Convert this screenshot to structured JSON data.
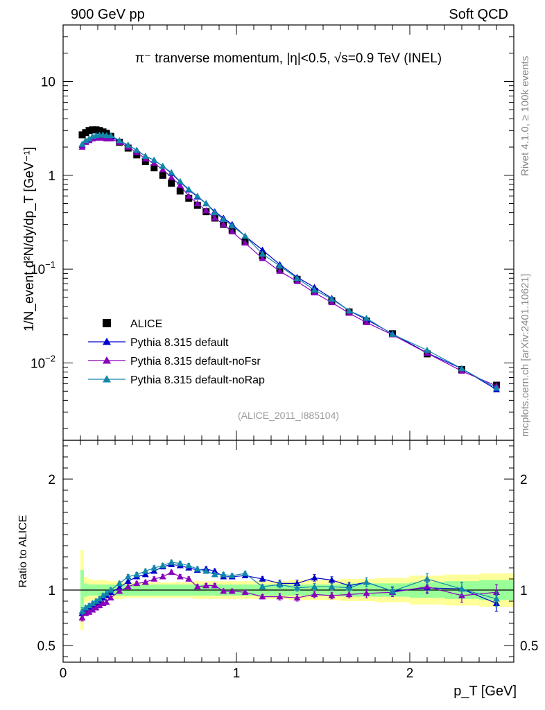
{
  "header": {
    "left": "900 GeV pp",
    "right": "Soft QCD"
  },
  "side_labels": {
    "rivet": "Rivet 4.1.0, ≥ 100k events",
    "mcplots": "mcplots.cern.ch [arXiv:2401.10621]"
  },
  "analysis_id": "(ALICE_2011_I885104)",
  "chart_data": [
    {
      "type": "scatter",
      "title": "π⁻ tranverse momentum, |η|<0.5, √s=0.9 TeV (INEL)",
      "ylabel": "1/N_event d²N/dy/dp_T [GeV⁻¹]",
      "xlabel": "",
      "yscale": "log",
      "xlim": [
        0,
        2.6
      ],
      "ylim": [
        0.0015,
        40
      ],
      "y_ticks": [
        {
          "value": 10,
          "base": "10",
          "exp": ""
        },
        {
          "value": 1,
          "base": "1",
          "exp": ""
        },
        {
          "value": 0.1,
          "base": "10",
          "exp": "−1"
        },
        {
          "value": 0.01,
          "base": "10",
          "exp": "−2"
        }
      ],
      "legend_position": "lower-left",
      "series": [
        {
          "name": "ALICE",
          "color": "#000000",
          "marker": "square",
          "x": [
            0.11,
            0.13,
            0.15,
            0.17,
            0.19,
            0.21,
            0.23,
            0.25,
            0.275,
            0.325,
            0.375,
            0.425,
            0.475,
            0.525,
            0.575,
            0.625,
            0.675,
            0.725,
            0.775,
            0.825,
            0.875,
            0.925,
            0.975,
            1.05,
            1.15,
            1.25,
            1.35,
            1.45,
            1.55,
            1.65,
            1.75,
            1.9,
            2.1,
            2.3,
            2.5
          ],
          "y": [
            2.7,
            2.85,
            3.0,
            3.05,
            3.05,
            3.0,
            2.9,
            2.8,
            2.6,
            2.25,
            1.95,
            1.65,
            1.4,
            1.2,
            1.0,
            0.82,
            0.68,
            0.57,
            0.48,
            0.41,
            0.35,
            0.3,
            0.26,
            0.195,
            0.138,
            0.1,
            0.078,
            0.058,
            0.046,
            0.035,
            0.028,
            0.0205,
            0.0125,
            0.0085,
            0.0058
          ]
        },
        {
          "name": "Pythia 8.315 default",
          "color": "#0000cc",
          "marker": "triangle",
          "x": [
            0.11,
            0.13,
            0.15,
            0.17,
            0.19,
            0.21,
            0.23,
            0.25,
            0.275,
            0.325,
            0.375,
            0.425,
            0.475,
            0.525,
            0.575,
            0.625,
            0.675,
            0.725,
            0.775,
            0.825,
            0.875,
            0.925,
            0.975,
            1.05,
            1.15,
            1.25,
            1.35,
            1.45,
            1.55,
            1.65,
            1.75,
            1.9,
            2.1,
            2.3,
            2.5
          ],
          "y": [
            2.1,
            2.3,
            2.4,
            2.55,
            2.6,
            2.65,
            2.65,
            2.6,
            2.6,
            2.3,
            2.1,
            1.85,
            1.6,
            1.45,
            1.25,
            1.05,
            0.85,
            0.7,
            0.59,
            0.5,
            0.41,
            0.35,
            0.3,
            0.225,
            0.16,
            0.112,
            0.082,
            0.064,
            0.049,
            0.036,
            0.029,
            0.0205,
            0.0128,
            0.0087,
            0.0052
          ]
        },
        {
          "name": "Pythia 8.315 default-noFsr",
          "color": "#8800bb",
          "marker": "triangle",
          "x": [
            0.11,
            0.13,
            0.15,
            0.17,
            0.19,
            0.21,
            0.23,
            0.25,
            0.275,
            0.325,
            0.375,
            0.425,
            0.475,
            0.525,
            0.575,
            0.625,
            0.675,
            0.725,
            0.775,
            0.825,
            0.875,
            0.925,
            0.975,
            1.05,
            1.15,
            1.25,
            1.35,
            1.45,
            1.55,
            1.65,
            1.75,
            1.9,
            2.1,
            2.3,
            2.5
          ],
          "y": [
            2.0,
            2.25,
            2.35,
            2.45,
            2.5,
            2.5,
            2.5,
            2.45,
            2.45,
            2.25,
            2.0,
            1.75,
            1.5,
            1.35,
            1.15,
            0.95,
            0.78,
            0.6,
            0.5,
            0.42,
            0.35,
            0.3,
            0.25,
            0.19,
            0.13,
            0.095,
            0.074,
            0.056,
            0.044,
            0.034,
            0.027,
            0.02,
            0.0127,
            0.0082,
            0.0057
          ]
        },
        {
          "name": "Pythia 8.315 default-noRap",
          "color": "#1188aa",
          "marker": "triangle",
          "x": [
            0.11,
            0.13,
            0.15,
            0.17,
            0.19,
            0.21,
            0.23,
            0.25,
            0.275,
            0.325,
            0.375,
            0.425,
            0.475,
            0.525,
            0.575,
            0.625,
            0.675,
            0.725,
            0.775,
            0.825,
            0.875,
            0.925,
            0.975,
            1.05,
            1.15,
            1.25,
            1.35,
            1.45,
            1.55,
            1.65,
            1.75,
            1.9,
            2.1,
            2.3,
            2.5
          ],
          "y": [
            2.15,
            2.35,
            2.45,
            2.6,
            2.65,
            2.7,
            2.7,
            2.65,
            2.65,
            2.35,
            2.1,
            1.85,
            1.6,
            1.45,
            1.25,
            1.07,
            0.86,
            0.71,
            0.6,
            0.5,
            0.4,
            0.34,
            0.29,
            0.225,
            0.145,
            0.108,
            0.08,
            0.06,
            0.048,
            0.036,
            0.03,
            0.0202,
            0.0137,
            0.0087,
            0.0054
          ]
        }
      ]
    },
    {
      "type": "scatter",
      "title": "",
      "xlabel": "p_T [GeV]",
      "ylabel": "Ratio to ALICE",
      "xlim": [
        0,
        2.6
      ],
      "ylim": [
        0.35,
        2.35
      ],
      "x_ticks": [
        0,
        1,
        2
      ],
      "y_ticks": [
        0.5,
        1,
        2
      ],
      "bands": {
        "bin_edges": [
          0.1,
          0.12,
          0.14,
          0.16,
          0.18,
          0.2,
          0.22,
          0.24,
          0.26,
          0.3,
          0.35,
          0.4,
          0.45,
          0.5,
          0.55,
          0.6,
          0.65,
          0.7,
          0.75,
          0.8,
          0.85,
          0.9,
          0.95,
          1.0,
          1.1,
          1.2,
          1.3,
          1.4,
          1.5,
          1.6,
          1.7,
          1.8,
          2.0,
          2.2,
          2.4,
          2.6
        ],
        "green_halfwidth": [
          0.18,
          0.06,
          0.05,
          0.05,
          0.05,
          0.05,
          0.05,
          0.05,
          0.05,
          0.05,
          0.05,
          0.05,
          0.05,
          0.05,
          0.05,
          0.05,
          0.05,
          0.05,
          0.05,
          0.05,
          0.05,
          0.05,
          0.05,
          0.05,
          0.05,
          0.05,
          0.05,
          0.05,
          0.05,
          0.06,
          0.06,
          0.06,
          0.07,
          0.08,
          0.09
        ],
        "yellow_halfwidth": [
          0.36,
          0.12,
          0.1,
          0.09,
          0.09,
          0.09,
          0.09,
          0.09,
          0.08,
          0.08,
          0.07,
          0.07,
          0.07,
          0.07,
          0.07,
          0.07,
          0.07,
          0.07,
          0.08,
          0.08,
          0.08,
          0.08,
          0.08,
          0.08,
          0.08,
          0.08,
          0.09,
          0.09,
          0.09,
          0.1,
          0.1,
          0.11,
          0.13,
          0.14,
          0.15
        ]
      },
      "reference_line": 1.0,
      "series": [
        {
          "name": "Pythia 8.315 default",
          "color": "#0000cc",
          "x": [
            0.11,
            0.13,
            0.15,
            0.17,
            0.19,
            0.21,
            0.23,
            0.25,
            0.275,
            0.325,
            0.375,
            0.425,
            0.475,
            0.525,
            0.575,
            0.625,
            0.675,
            0.725,
            0.775,
            0.825,
            0.875,
            0.925,
            0.975,
            1.05,
            1.15,
            1.25,
            1.35,
            1.45,
            1.55,
            1.65,
            1.75,
            1.9,
            2.1,
            2.3,
            2.5
          ],
          "y": [
            0.79,
            0.82,
            0.84,
            0.86,
            0.88,
            0.9,
            0.93,
            0.95,
            0.98,
            1.02,
            1.08,
            1.12,
            1.14,
            1.17,
            1.21,
            1.23,
            1.22,
            1.2,
            1.18,
            1.19,
            1.17,
            1.12,
            1.12,
            1.13,
            1.1,
            1.06,
            1.06,
            1.11,
            1.09,
            1.04,
            1.07,
            0.99,
            1.02,
            1.01,
            0.88
          ],
          "err": [
            0.03,
            0.02,
            0.02,
            0.02,
            0.02,
            0.02,
            0.02,
            0.02,
            0.02,
            0.02,
            0.02,
            0.02,
            0.02,
            0.02,
            0.02,
            0.02,
            0.02,
            0.02,
            0.02,
            0.02,
            0.02,
            0.02,
            0.02,
            0.02,
            0.02,
            0.03,
            0.03,
            0.03,
            0.03,
            0.03,
            0.04,
            0.04,
            0.05,
            0.06,
            0.07
          ]
        },
        {
          "name": "Pythia 8.315 default-noFsr",
          "color": "#8800bb",
          "x": [
            0.11,
            0.13,
            0.15,
            0.17,
            0.19,
            0.21,
            0.23,
            0.25,
            0.275,
            0.325,
            0.375,
            0.425,
            0.475,
            0.525,
            0.575,
            0.625,
            0.675,
            0.725,
            0.775,
            0.825,
            0.875,
            0.925,
            0.975,
            1.05,
            1.15,
            1.25,
            1.35,
            1.45,
            1.55,
            1.65,
            1.75,
            1.9,
            2.1,
            2.3,
            2.5
          ],
          "y": [
            0.75,
            0.79,
            0.8,
            0.82,
            0.84,
            0.86,
            0.88,
            0.89,
            0.93,
            0.99,
            1.03,
            1.06,
            1.07,
            1.1,
            1.12,
            1.16,
            1.12,
            1.1,
            1.03,
            1.04,
            1.04,
            0.99,
            0.99,
            0.98,
            0.94,
            0.94,
            0.93,
            0.96,
            0.95,
            0.96,
            0.97,
            0.98,
            1.03,
            0.95,
            0.98
          ],
          "err": [
            0.03,
            0.02,
            0.02,
            0.02,
            0.02,
            0.02,
            0.02,
            0.02,
            0.02,
            0.02,
            0.02,
            0.02,
            0.02,
            0.02,
            0.02,
            0.02,
            0.02,
            0.02,
            0.02,
            0.02,
            0.02,
            0.02,
            0.02,
            0.02,
            0.02,
            0.03,
            0.03,
            0.03,
            0.03,
            0.03,
            0.04,
            0.04,
            0.05,
            0.06,
            0.07
          ]
        },
        {
          "name": "Pythia 8.315 default-noRap",
          "color": "#1188aa",
          "x": [
            0.11,
            0.13,
            0.15,
            0.17,
            0.19,
            0.21,
            0.23,
            0.25,
            0.275,
            0.325,
            0.375,
            0.425,
            0.475,
            0.525,
            0.575,
            0.625,
            0.675,
            0.725,
            0.775,
            0.825,
            0.875,
            0.925,
            0.975,
            1.05,
            1.15,
            1.25,
            1.35,
            1.45,
            1.55,
            1.65,
            1.75,
            1.9,
            2.1,
            2.3,
            2.5
          ],
          "y": [
            0.81,
            0.84,
            0.86,
            0.88,
            0.9,
            0.92,
            0.95,
            0.97,
            1.0,
            1.06,
            1.12,
            1.14,
            1.17,
            1.2,
            1.22,
            1.25,
            1.24,
            1.22,
            1.19,
            1.17,
            1.14,
            1.14,
            1.13,
            1.15,
            1.03,
            1.05,
            1.02,
            1.03,
            1.03,
            1.02,
            1.07,
            0.99,
            1.1,
            1.01,
            0.92
          ],
          "err": [
            0.03,
            0.02,
            0.02,
            0.02,
            0.02,
            0.02,
            0.02,
            0.02,
            0.02,
            0.02,
            0.02,
            0.02,
            0.02,
            0.02,
            0.02,
            0.02,
            0.02,
            0.02,
            0.02,
            0.02,
            0.02,
            0.02,
            0.02,
            0.02,
            0.02,
            0.03,
            0.03,
            0.03,
            0.03,
            0.03,
            0.04,
            0.04,
            0.05,
            0.06,
            0.07
          ]
        }
      ]
    }
  ]
}
